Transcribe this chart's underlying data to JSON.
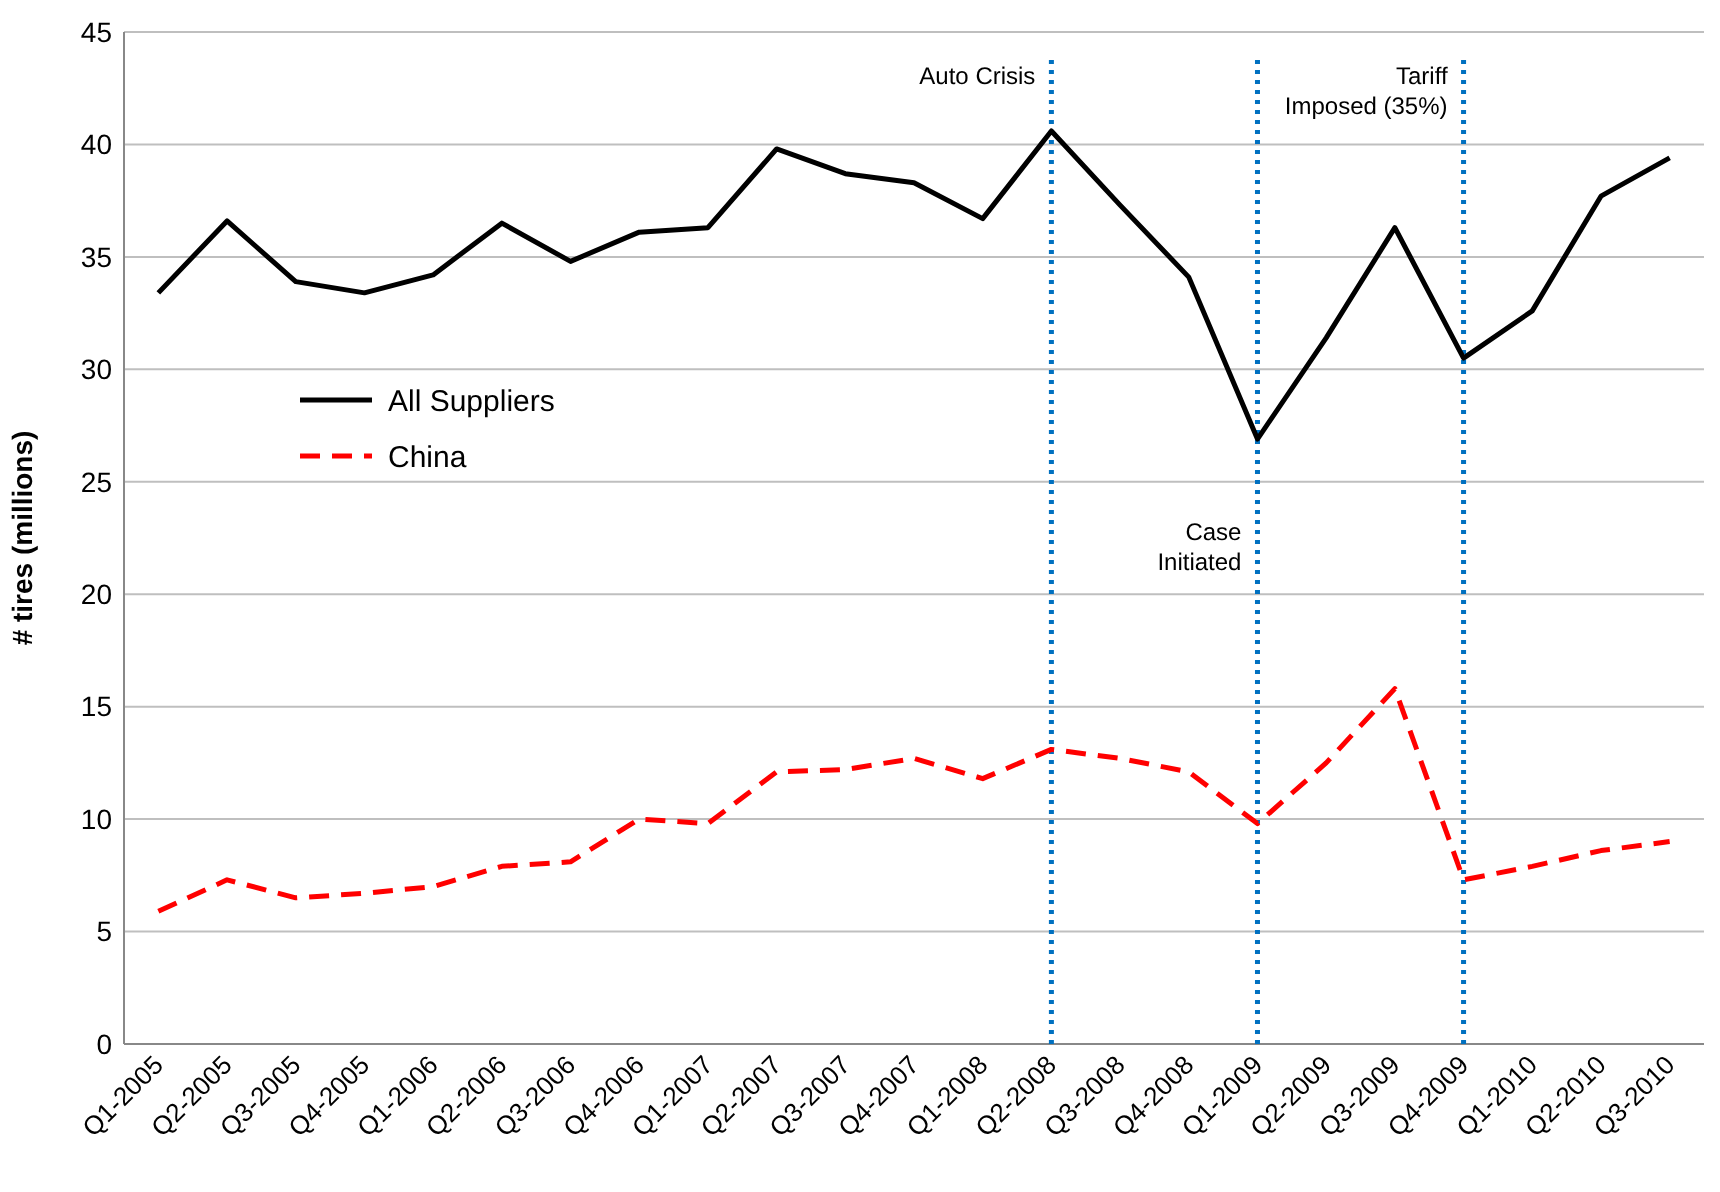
{
  "chart_data": {
    "type": "line",
    "ylabel": "# tires (millions)",
    "categories": [
      "Q1-2005",
      "Q2-2005",
      "Q3-2005",
      "Q4-2005",
      "Q1-2006",
      "Q2-2006",
      "Q3-2006",
      "Q4-2006",
      "Q1-2007",
      "Q2-2007",
      "Q3-2007",
      "Q4-2007",
      "Q1-2008",
      "Q2-2008",
      "Q3-2008",
      "Q4-2008",
      "Q1-2009",
      "Q2-2009",
      "Q3-2009",
      "Q4-2009",
      "Q1-2010",
      "Q2-2010",
      "Q3-2010"
    ],
    "series": [
      {
        "name": "All Suppliers",
        "color": "#000000",
        "line_style": "solid",
        "values": [
          33.4,
          36.6,
          33.9,
          33.4,
          34.2,
          36.5,
          34.8,
          36.1,
          36.3,
          39.8,
          38.7,
          38.3,
          36.7,
          40.6,
          37.3,
          34.1,
          26.9,
          31.4,
          36.3,
          30.5,
          32.6,
          37.7,
          39.4
        ]
      },
      {
        "name": "China",
        "color": "#ff0000",
        "line_style": "dashed",
        "values": [
          5.9,
          7.3,
          6.5,
          6.7,
          7.0,
          7.9,
          8.1,
          10.0,
          9.8,
          12.1,
          12.2,
          12.7,
          11.8,
          13.1,
          12.7,
          12.1,
          9.8,
          12.5,
          15.8,
          7.3,
          7.9,
          8.6,
          9.0
        ]
      }
    ],
    "ylim": [
      0,
      45
    ],
    "yticks": [
      0,
      5,
      10,
      15,
      20,
      25,
      30,
      35,
      40,
      45
    ],
    "grid": "y",
    "legend": "left",
    "marker": "none",
    "ref_lines": [
      {
        "axis": "x",
        "value": "Q2-2008",
        "label": "Auto Crisis",
        "color": "#0070c0",
        "line_style": "dotted"
      },
      {
        "axis": "x",
        "value": "Q1-2009",
        "label": "Case Initiated",
        "color": "#0070c0",
        "line_style": "dotted"
      },
      {
        "axis": "x",
        "value": "Q4-2009",
        "label": "Tariff Imposed (35%)",
        "color": "#0070c0",
        "line_style": "dotted"
      }
    ]
  }
}
